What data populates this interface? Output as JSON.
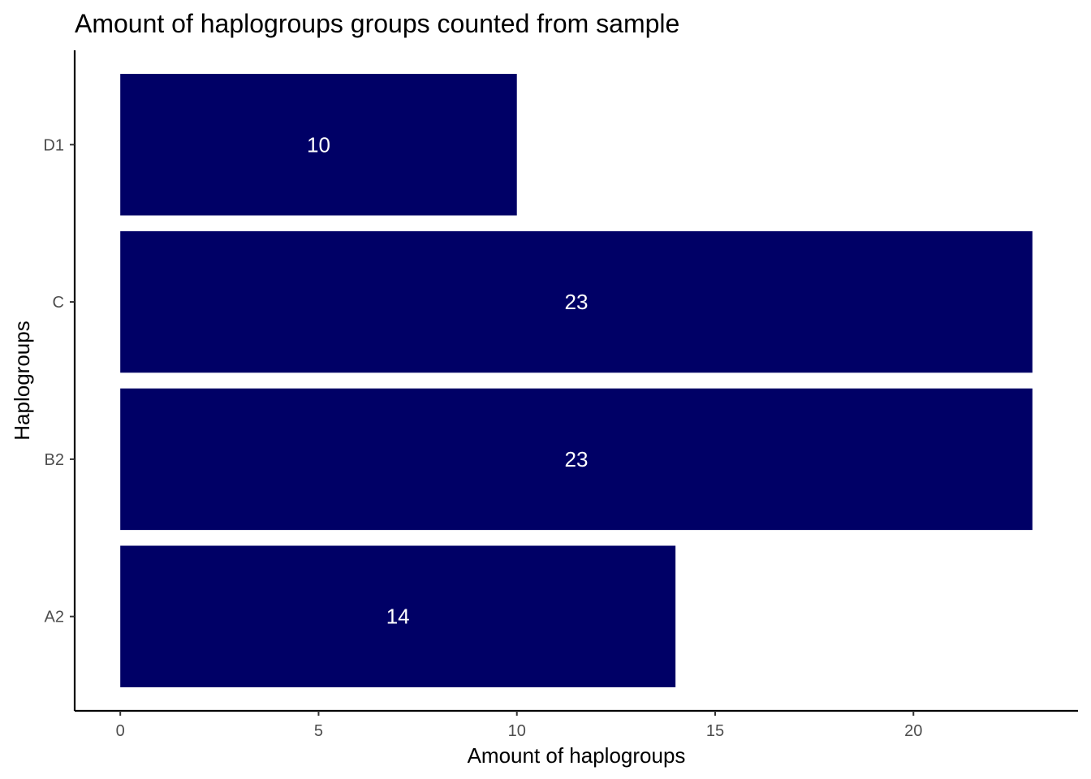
{
  "chart_data": {
    "type": "bar",
    "orientation": "horizontal",
    "title": "Amount of haplogroups groups counted from sample",
    "xlabel": "Amount of haplogroups",
    "ylabel": "Haplogroups",
    "categories": [
      "A2",
      "B2",
      "C",
      "D1"
    ],
    "values": [
      14,
      23,
      23,
      10
    ],
    "data_labels": [
      "14",
      "23",
      "23",
      "10"
    ],
    "xlim": [
      -1.15,
      24.15
    ],
    "x_ticks": [
      0,
      5,
      10,
      15,
      20
    ],
    "x_tick_labels": [
      "0",
      "5",
      "10",
      "15",
      "20"
    ],
    "bar_color": "#000066",
    "data_label_color": "#ffffff",
    "grid": false,
    "legend": "none"
  }
}
